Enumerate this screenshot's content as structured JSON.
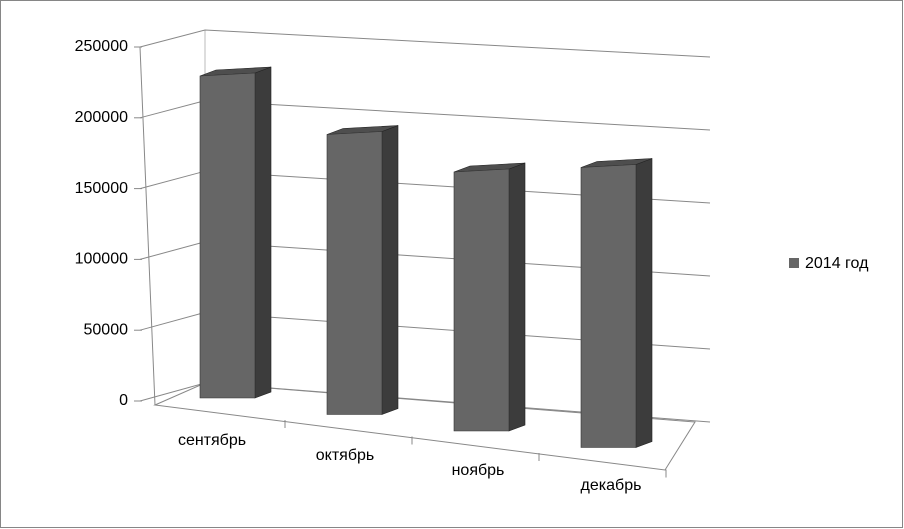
{
  "chart_data": {
    "type": "bar",
    "categories": [
      "сентябрь",
      "октябрь",
      "ноябрь",
      "декабрь"
    ],
    "series": [
      {
        "name": "2014 год",
        "color": "#666666",
        "values": [
          230000,
          200000,
          185000,
          200000
        ]
      }
    ],
    "ylim": [
      0,
      250000
    ],
    "yticks": [
      0,
      50000,
      100000,
      150000,
      200000,
      250000
    ],
    "grid": true,
    "legend": "right"
  }
}
